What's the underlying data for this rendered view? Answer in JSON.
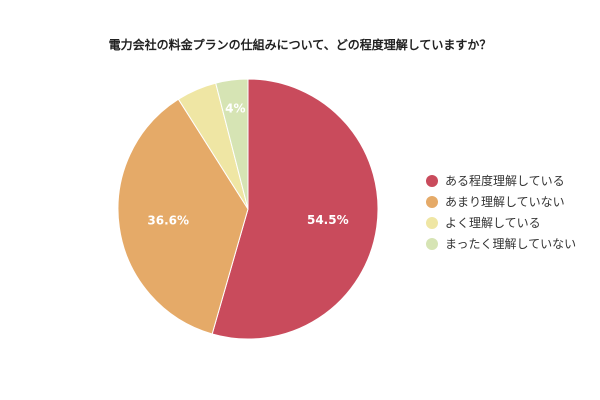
{
  "chart_data": {
    "type": "pie",
    "title": "電力会社の料金プランの仕組みについて、どの程度理解していますか？",
    "slices": [
      {
        "label": "ある程度理解している",
        "value": 54.5,
        "display": "54.5%",
        "color": "#c94b5c"
      },
      {
        "label": "あまり理解していない",
        "value": 36.6,
        "display": "36.6%",
        "color": "#e5aa68"
      },
      {
        "label": "よく理解している",
        "value": 5.0,
        "display": "",
        "color": "#efe6a4"
      },
      {
        "label": "まったく理解していない",
        "value": 4.0,
        "display": "4%",
        "color": "#d6e4b4"
      }
    ],
    "legend_position": "right",
    "start": "12 o'clock, clockwise"
  }
}
